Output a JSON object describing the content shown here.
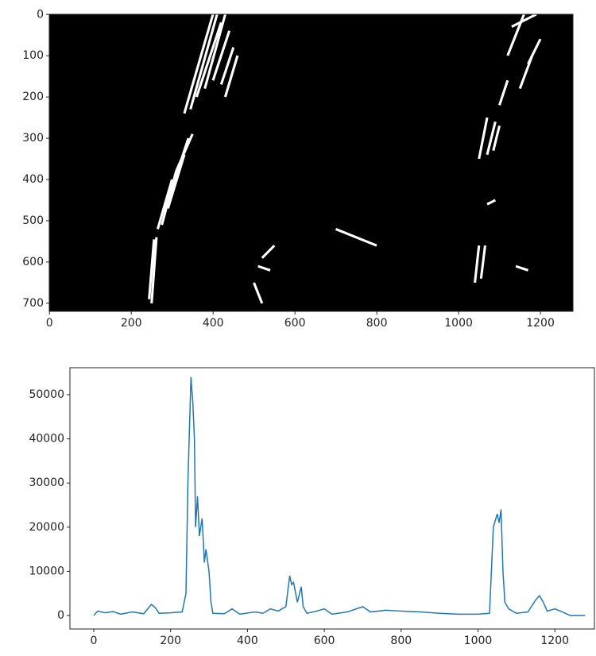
{
  "chart_data": [
    {
      "type": "image",
      "xlim": [
        -0.5,
        1279.5
      ],
      "ylim": [
        719.5,
        -0.5
      ],
      "xticks": [
        0,
        200,
        400,
        600,
        800,
        1000,
        1200
      ],
      "yticks": [
        0,
        100,
        200,
        300,
        400,
        500,
        600,
        700
      ]
    },
    {
      "type": "line",
      "xlim": [
        -62,
        1303
      ],
      "ylim": [
        -3058,
        56115
      ],
      "xticks": [
        0,
        200,
        400,
        600,
        800,
        1000,
        1200
      ],
      "yticks": [
        0,
        10000,
        20000,
        30000,
        40000,
        50000
      ],
      "x": [
        0,
        10,
        30,
        50,
        70,
        100,
        130,
        150,
        160,
        170,
        200,
        230,
        240,
        245,
        250,
        253,
        258,
        262,
        265,
        270,
        275,
        282,
        288,
        292,
        300,
        305,
        310,
        340,
        360,
        380,
        420,
        440,
        460,
        480,
        500,
        510,
        515,
        520,
        530,
        540,
        545,
        555,
        580,
        600,
        620,
        660,
        700,
        720,
        760,
        800,
        850,
        900,
        950,
        1000,
        1030,
        1040,
        1050,
        1055,
        1060,
        1065,
        1070,
        1080,
        1100,
        1130,
        1150,
        1160,
        1170,
        1180,
        1200,
        1220,
        1240,
        1279
      ],
      "series": [
        {
          "color": "#1f77b4",
          "values": [
            0,
            1000,
            600,
            900,
            300,
            800,
            400,
            2500,
            1800,
            500,
            600,
            800,
            5000,
            30000,
            45000,
            54000,
            48000,
            40000,
            20000,
            27000,
            18000,
            22000,
            12000,
            15000,
            10000,
            3000,
            500,
            400,
            1500,
            300,
            800,
            500,
            1500,
            1000,
            2000,
            9000,
            7000,
            7500,
            3000,
            6500,
            2000,
            500,
            1000,
            1500,
            300,
            800,
            2000,
            800,
            1200,
            1000,
            800,
            500,
            300,
            300,
            500,
            20000,
            23000,
            21000,
            24000,
            10000,
            3000,
            1500,
            500,
            800,
            3500,
            4500,
            3000,
            1000,
            1500,
            800,
            0,
            0
          ]
        }
      ]
    }
  ]
}
